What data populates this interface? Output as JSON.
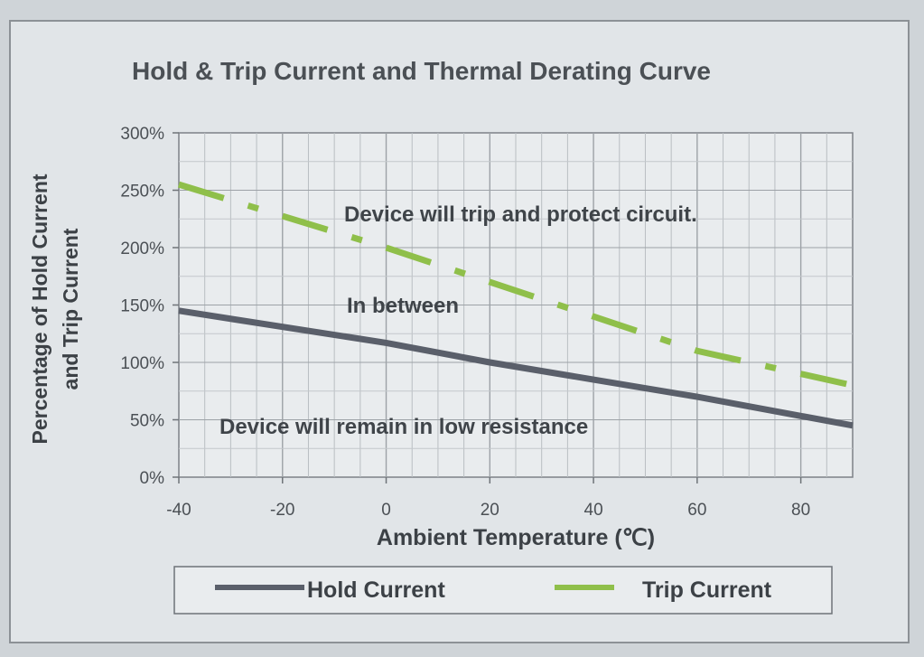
{
  "chart_data": {
    "type": "line",
    "title": "Hold & Trip Current and Thermal Derating Curve",
    "ylabel_line1": "Percentage of Hold Current",
    "ylabel_line2": "and Trip Current",
    "xlabel": "Ambient Temperature (℃)",
    "x_ticks": [
      "-40",
      "-20",
      "0",
      "20",
      "40",
      "60",
      "80"
    ],
    "y_ticks": [
      "0%",
      "50%",
      "100%",
      "150%",
      "200%",
      "250%",
      "300%"
    ],
    "xlim": [
      -40,
      90
    ],
    "ylim": [
      0,
      300
    ],
    "grid": true,
    "legend_position": "bottom",
    "series": [
      {
        "name": "Hold Current",
        "color": "#5a5f6a",
        "style": "solid",
        "x": [
          -40,
          0,
          20,
          40,
          60,
          90
        ],
        "y": [
          145,
          117,
          100,
          85,
          70,
          45
        ]
      },
      {
        "name": "Trip Current",
        "color": "#8fbf4a",
        "style": "dash-dot",
        "x": [
          -40,
          0,
          20,
          40,
          60,
          90
        ],
        "y": [
          255,
          200,
          170,
          140,
          110,
          80
        ]
      }
    ],
    "annotations": [
      {
        "text": "Device will trip and protect circuit.",
        "x": 25,
        "y": 228
      },
      {
        "text": "In between",
        "x": 9,
        "y": 147
      },
      {
        "text": "Device will remain in low resistance",
        "x": 18,
        "y": 43
      }
    ]
  }
}
